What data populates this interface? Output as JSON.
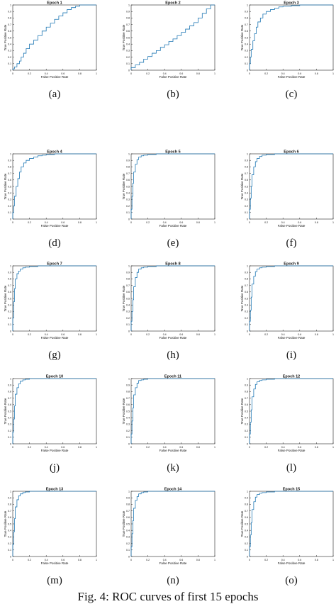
{
  "figure": {
    "caption": "Fig. 4: ROC curves of first 15 epochs"
  },
  "colors": {
    "curve": "#1f77b4",
    "axis": "#222222",
    "text": "#111111"
  },
  "chart_data": [
    {
      "type": "line",
      "panel": "(a)",
      "title": "Epoch 1",
      "xlabel": "False Positive Rate",
      "ylabel": "True Positive Rate",
      "xlim": [
        0,
        1
      ],
      "ylim": [
        0,
        1
      ],
      "series": [
        {
          "x": [
            0,
            0.02,
            0.05,
            0.08,
            0.1,
            0.13,
            0.16,
            0.2,
            0.25,
            0.3,
            0.35,
            0.4,
            0.45,
            0.5,
            0.55,
            0.6,
            0.65,
            0.7,
            0.75,
            0.8,
            0.85,
            0.9,
            0.95,
            1
          ],
          "y": [
            0,
            0.02,
            0.05,
            0.1,
            0.14,
            0.2,
            0.26,
            0.33,
            0.4,
            0.46,
            0.53,
            0.6,
            0.66,
            0.72,
            0.78,
            0.83,
            0.88,
            0.93,
            0.96,
            0.98,
            1,
            1,
            1,
            1
          ]
        }
      ]
    },
    {
      "type": "line",
      "panel": "(b)",
      "title": "Epoch 2",
      "xlabel": "False Positive Rate",
      "ylabel": "True Positive Rate",
      "xlim": [
        0,
        1
      ],
      "ylim": [
        0,
        1
      ],
      "series": [
        {
          "x": [
            0,
            0.05,
            0.1,
            0.15,
            0.2,
            0.25,
            0.3,
            0.35,
            0.4,
            0.45,
            0.5,
            0.55,
            0.6,
            0.65,
            0.7,
            0.75,
            0.8,
            0.85,
            0.9,
            0.95,
            1
          ],
          "y": [
            0,
            0.04,
            0.08,
            0.12,
            0.17,
            0.21,
            0.26,
            0.3,
            0.35,
            0.39,
            0.44,
            0.48,
            0.53,
            0.58,
            0.63,
            0.68,
            0.73,
            0.8,
            0.87,
            0.94,
            1
          ]
        }
      ]
    },
    {
      "type": "line",
      "panel": "(c)",
      "title": "Epoch 3",
      "xlabel": "False Positive Rate",
      "ylabel": "True Positive Rate",
      "xlim": [
        0,
        1
      ],
      "ylim": [
        0,
        1
      ],
      "series": [
        {
          "x": [
            0,
            0.01,
            0.02,
            0.04,
            0.06,
            0.08,
            0.1,
            0.13,
            0.16,
            0.2,
            0.25,
            0.3,
            0.35,
            0.4,
            0.5,
            0.6,
            0.7,
            0.8,
            0.9,
            1
          ],
          "y": [
            0,
            0.1,
            0.2,
            0.32,
            0.45,
            0.56,
            0.66,
            0.74,
            0.8,
            0.86,
            0.9,
            0.93,
            0.95,
            0.97,
            0.98,
            0.99,
            1,
            1,
            1,
            1
          ]
        }
      ]
    },
    {
      "type": "line",
      "panel": "(d)",
      "title": "Epoch 4",
      "xlabel": "False Positive Rate",
      "ylabel": "True Positive Rate",
      "xlim": [
        0,
        1
      ],
      "ylim": [
        0,
        1
      ],
      "series": [
        {
          "x": [
            0,
            0.01,
            0.02,
            0.04,
            0.06,
            0.08,
            0.1,
            0.13,
            0.16,
            0.2,
            0.25,
            0.3,
            0.35,
            0.4,
            0.5,
            0.6,
            0.7,
            0.8,
            0.9,
            1
          ],
          "y": [
            0,
            0.1,
            0.2,
            0.35,
            0.5,
            0.62,
            0.72,
            0.8,
            0.86,
            0.9,
            0.93,
            0.95,
            0.97,
            0.98,
            0.99,
            1,
            1,
            1,
            1,
            1
          ]
        }
      ]
    },
    {
      "type": "line",
      "panel": "(e)",
      "title": "Epoch 5",
      "xlabel": "False Positive Rate",
      "ylabel": "True Positive Rate",
      "xlim": [
        0,
        1
      ],
      "ylim": [
        0,
        1
      ],
      "series": [
        {
          "x": [
            0,
            0.01,
            0.02,
            0.03,
            0.05,
            0.07,
            0.09,
            0.12,
            0.15,
            0.2,
            0.3,
            0.4,
            0.5,
            0.6,
            0.8,
            1
          ],
          "y": [
            0,
            0.15,
            0.35,
            0.55,
            0.72,
            0.84,
            0.91,
            0.95,
            0.97,
            0.98,
            0.99,
            1,
            1,
            1,
            1,
            1
          ]
        }
      ]
    },
    {
      "type": "line",
      "panel": "(f)",
      "title": "Epoch 6",
      "xlabel": "False Positive Rate",
      "ylabel": "True Positive Rate",
      "xlim": [
        0,
        1
      ],
      "ylim": [
        0,
        1
      ],
      "series": [
        {
          "x": [
            0,
            0.01,
            0.02,
            0.03,
            0.05,
            0.07,
            0.09,
            0.12,
            0.15,
            0.2,
            0.3,
            0.4,
            0.5,
            0.6,
            0.8,
            1
          ],
          "y": [
            0,
            0.15,
            0.32,
            0.5,
            0.68,
            0.8,
            0.88,
            0.93,
            0.96,
            0.98,
            0.99,
            1,
            1,
            1,
            1,
            1
          ]
        }
      ]
    },
    {
      "type": "line",
      "panel": "(g)",
      "title": "Epoch 7",
      "xlabel": "False Positive Rate",
      "ylabel": "True Positive Rate",
      "xlim": [
        0,
        1
      ],
      "ylim": [
        0,
        1
      ],
      "series": [
        {
          "x": [
            0,
            0.01,
            0.02,
            0.03,
            0.05,
            0.07,
            0.09,
            0.12,
            0.15,
            0.2,
            0.3,
            0.4,
            0.5,
            0.6,
            0.8,
            1
          ],
          "y": [
            0,
            0.2,
            0.45,
            0.65,
            0.8,
            0.88,
            0.92,
            0.95,
            0.97,
            0.98,
            0.99,
            1,
            1,
            1,
            1,
            1
          ]
        }
      ]
    },
    {
      "type": "line",
      "panel": "(h)",
      "title": "Epoch 8",
      "xlabel": "False Positive Rate",
      "ylabel": "True Positive Rate",
      "xlim": [
        0,
        1
      ],
      "ylim": [
        0,
        1
      ],
      "series": [
        {
          "x": [
            0,
            0.01,
            0.02,
            0.03,
            0.05,
            0.07,
            0.09,
            0.12,
            0.15,
            0.2,
            0.3,
            0.4,
            0.5,
            0.6,
            0.8,
            1
          ],
          "y": [
            0,
            0.15,
            0.3,
            0.48,
            0.68,
            0.82,
            0.9,
            0.95,
            0.97,
            0.98,
            0.99,
            1,
            1,
            1,
            1,
            1
          ]
        }
      ]
    },
    {
      "type": "line",
      "panel": "(i)",
      "title": "Epoch 9",
      "xlabel": "False Positive Rate",
      "ylabel": "True Positive Rate",
      "xlim": [
        0,
        1
      ],
      "ylim": [
        0,
        1
      ],
      "series": [
        {
          "x": [
            0,
            0.01,
            0.02,
            0.03,
            0.05,
            0.07,
            0.09,
            0.12,
            0.15,
            0.2,
            0.3,
            0.4,
            0.5,
            0.6,
            0.8,
            1
          ],
          "y": [
            0,
            0.15,
            0.32,
            0.52,
            0.72,
            0.84,
            0.91,
            0.95,
            0.97,
            0.98,
            0.99,
            1,
            1,
            1,
            1,
            1
          ]
        }
      ]
    },
    {
      "type": "line",
      "panel": "(j)",
      "title": "Epoch 10",
      "xlabel": "False Positive Rate",
      "ylabel": "True Positive Rate",
      "xlim": [
        0,
        1
      ],
      "ylim": [
        0,
        1
      ],
      "series": [
        {
          "x": [
            0,
            0.01,
            0.02,
            0.03,
            0.05,
            0.07,
            0.09,
            0.12,
            0.15,
            0.2,
            0.3,
            0.4,
            0.5,
            0.6,
            0.8,
            1
          ],
          "y": [
            0,
            0.18,
            0.38,
            0.58,
            0.76,
            0.86,
            0.92,
            0.96,
            0.98,
            0.99,
            1,
            1,
            1,
            1,
            1,
            1
          ]
        }
      ]
    },
    {
      "type": "line",
      "panel": "(k)",
      "title": "Epoch 11",
      "xlabel": "False Positive Rate",
      "ylabel": "True Positive Rate",
      "xlim": [
        0,
        1
      ],
      "ylim": [
        0,
        1
      ],
      "series": [
        {
          "x": [
            0,
            0.01,
            0.02,
            0.03,
            0.05,
            0.07,
            0.09,
            0.12,
            0.15,
            0.2,
            0.3,
            0.4,
            0.5,
            0.6,
            0.8,
            1
          ],
          "y": [
            0,
            0.15,
            0.35,
            0.55,
            0.75,
            0.86,
            0.93,
            0.97,
            0.98,
            0.99,
            1,
            1,
            1,
            1,
            1,
            1
          ]
        }
      ]
    },
    {
      "type": "line",
      "panel": "(l)",
      "title": "Epoch 12",
      "xlabel": "False Positive Rate",
      "ylabel": "True Positive Rate",
      "xlim": [
        0,
        1
      ],
      "ylim": [
        0,
        1
      ],
      "series": [
        {
          "x": [
            0,
            0.01,
            0.02,
            0.03,
            0.05,
            0.07,
            0.09,
            0.12,
            0.15,
            0.2,
            0.3,
            0.4,
            0.5,
            0.6,
            0.8,
            1
          ],
          "y": [
            0,
            0.15,
            0.33,
            0.52,
            0.72,
            0.84,
            0.91,
            0.95,
            0.97,
            0.98,
            0.99,
            1,
            1,
            1,
            1,
            1
          ]
        }
      ]
    },
    {
      "type": "line",
      "panel": "(m)",
      "title": "Epoch 13",
      "xlabel": "False Positive Rate",
      "ylabel": "True Positive Rate",
      "xlim": [
        0,
        1
      ],
      "ylim": [
        0,
        1
      ],
      "series": [
        {
          "x": [
            0,
            0.01,
            0.02,
            0.03,
            0.05,
            0.07,
            0.09,
            0.12,
            0.15,
            0.2,
            0.3,
            0.4,
            0.5,
            0.6,
            0.8,
            1
          ],
          "y": [
            0,
            0.18,
            0.38,
            0.58,
            0.76,
            0.87,
            0.93,
            0.96,
            0.98,
            0.99,
            1,
            1,
            1,
            1,
            1,
            1
          ]
        }
      ]
    },
    {
      "type": "line",
      "panel": "(n)",
      "title": "Epoch 14",
      "xlabel": "False Positive Rate",
      "ylabel": "True Positive Rate",
      "xlim": [
        0,
        1
      ],
      "ylim": [
        0,
        1
      ],
      "series": [
        {
          "x": [
            0,
            0.01,
            0.02,
            0.03,
            0.05,
            0.07,
            0.09,
            0.12,
            0.15,
            0.2,
            0.3,
            0.4,
            0.5,
            0.6,
            0.8,
            1
          ],
          "y": [
            0,
            0.15,
            0.35,
            0.55,
            0.74,
            0.86,
            0.92,
            0.96,
            0.98,
            0.99,
            1,
            1,
            1,
            1,
            1,
            1
          ]
        }
      ]
    },
    {
      "type": "line",
      "panel": "(o)",
      "title": "Epoch 15",
      "xlabel": "False Positive Rate",
      "ylabel": "True Positive Rate",
      "xlim": [
        0,
        1
      ],
      "ylim": [
        0,
        1
      ],
      "series": [
        {
          "x": [
            0,
            0.01,
            0.02,
            0.03,
            0.05,
            0.07,
            0.09,
            0.12,
            0.15,
            0.2,
            0.3,
            0.4,
            0.5,
            0.6,
            0.8,
            1
          ],
          "y": [
            0,
            0.15,
            0.33,
            0.52,
            0.72,
            0.84,
            0.91,
            0.95,
            0.97,
            0.98,
            0.99,
            1,
            1,
            1,
            1,
            1
          ]
        }
      ]
    }
  ]
}
